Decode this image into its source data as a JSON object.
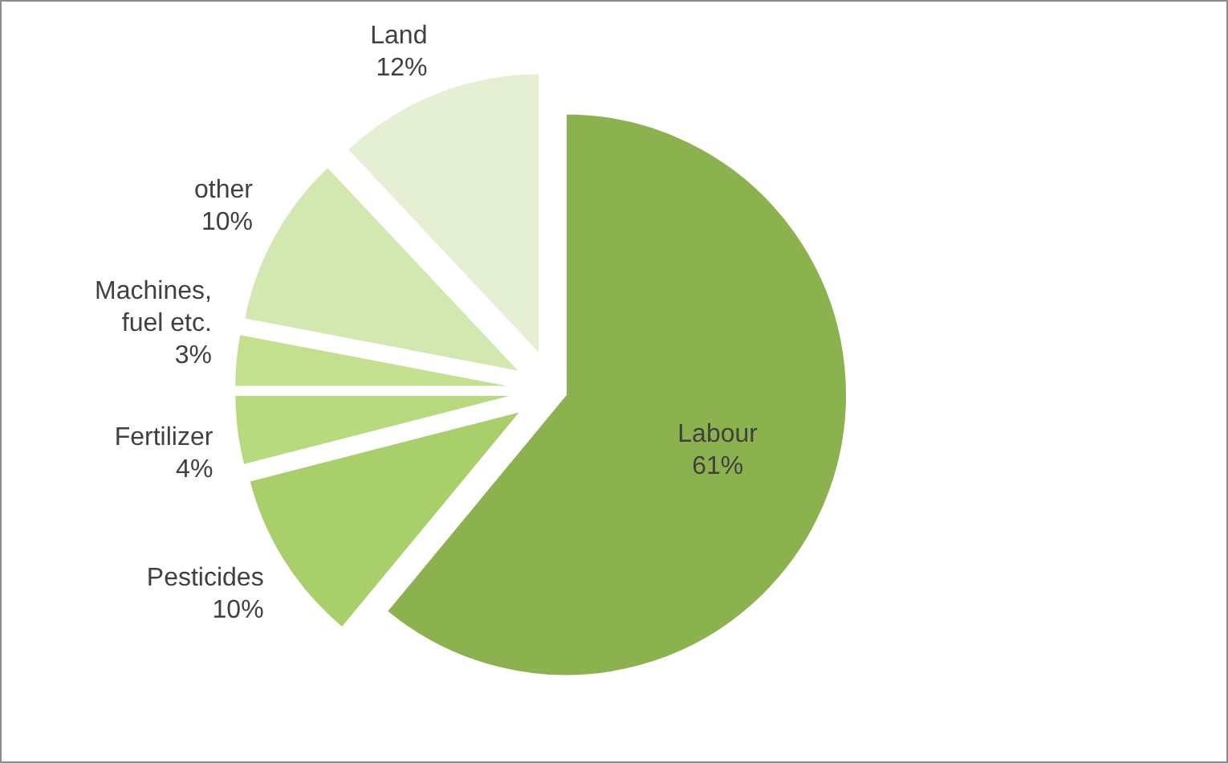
{
  "chart_data": {
    "type": "pie",
    "categories": [
      "Labour",
      "Pesticides",
      "Fertilizer",
      "Machines, fuel etc.",
      "other",
      "Land"
    ],
    "values": [
      61,
      10,
      4,
      3,
      10,
      12
    ],
    "colors": [
      "#8cb24f",
      "#a9cf6b",
      "#b7da7e",
      "#c3e08e",
      "#d3e8b0",
      "#e4efd3"
    ],
    "value_labels": [
      "61%",
      "10%",
      "4%",
      "3%",
      "10%",
      "12%"
    ],
    "legend": false
  }
}
